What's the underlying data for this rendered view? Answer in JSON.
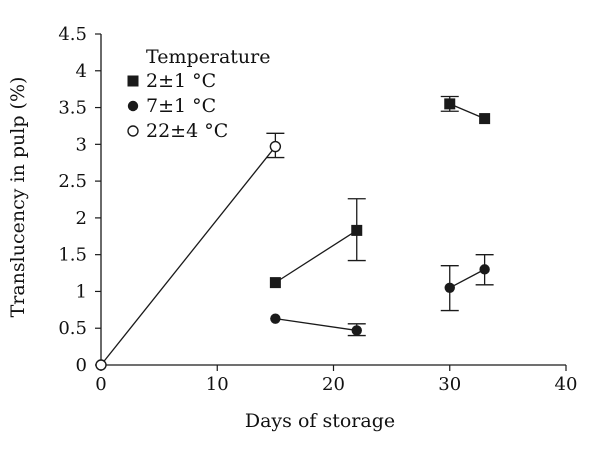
{
  "chart_data": {
    "type": "scatter",
    "xlabel": "Days of storage",
    "ylabel": "Translucency in pulp (%)",
    "xlim": [
      0,
      40
    ],
    "ylim": [
      0,
      4.5
    ],
    "xticks": [
      0,
      10,
      20,
      30,
      40
    ],
    "xtick_labels": [
      "0",
      "10",
      "20",
      "30",
      "40"
    ],
    "yticks": [
      0,
      0.5,
      1,
      1.5,
      2,
      2.5,
      3,
      3.5,
      4,
      4.5
    ],
    "ytick_labels": [
      "0",
      "0.5",
      "1",
      "1.5",
      "2",
      "2.5",
      "3",
      "3.5",
      "4",
      "4.5"
    ],
    "grid": false,
    "legend_title": "Temperature",
    "legend_position": "top-left",
    "series": [
      {
        "name": "2±1 °C",
        "marker": "filled-square",
        "color": "#1a1a1a",
        "segments": [
          [
            {
              "x": 15,
              "y": 1.12
            },
            {
              "x": 22,
              "y": 1.83,
              "err_low": 1.42,
              "err_high": 2.26
            }
          ],
          [
            {
              "x": 30,
              "y": 3.55,
              "err_low": 3.45,
              "err_high": 3.65
            },
            {
              "x": 33,
              "y": 3.35
            }
          ]
        ]
      },
      {
        "name": "7±1 °C",
        "marker": "filled-circle",
        "color": "#1a1a1a",
        "segments": [
          [
            {
              "x": 15,
              "y": 0.63
            },
            {
              "x": 22,
              "y": 0.47,
              "err_low": 0.4,
              "err_high": 0.56
            }
          ],
          [
            {
              "x": 30,
              "y": 1.05,
              "err_low": 0.74,
              "err_high": 1.35
            },
            {
              "x": 33,
              "y": 1.3,
              "err_low": 1.09,
              "err_high": 1.5
            }
          ]
        ]
      },
      {
        "name": "22±4 °C",
        "marker": "open-circle",
        "color": "#1a1a1a",
        "segments": [
          [
            {
              "x": 0,
              "y": 0
            },
            {
              "x": 15,
              "y": 2.97,
              "err_low": 2.82,
              "err_high": 3.15
            }
          ]
        ]
      }
    ]
  }
}
